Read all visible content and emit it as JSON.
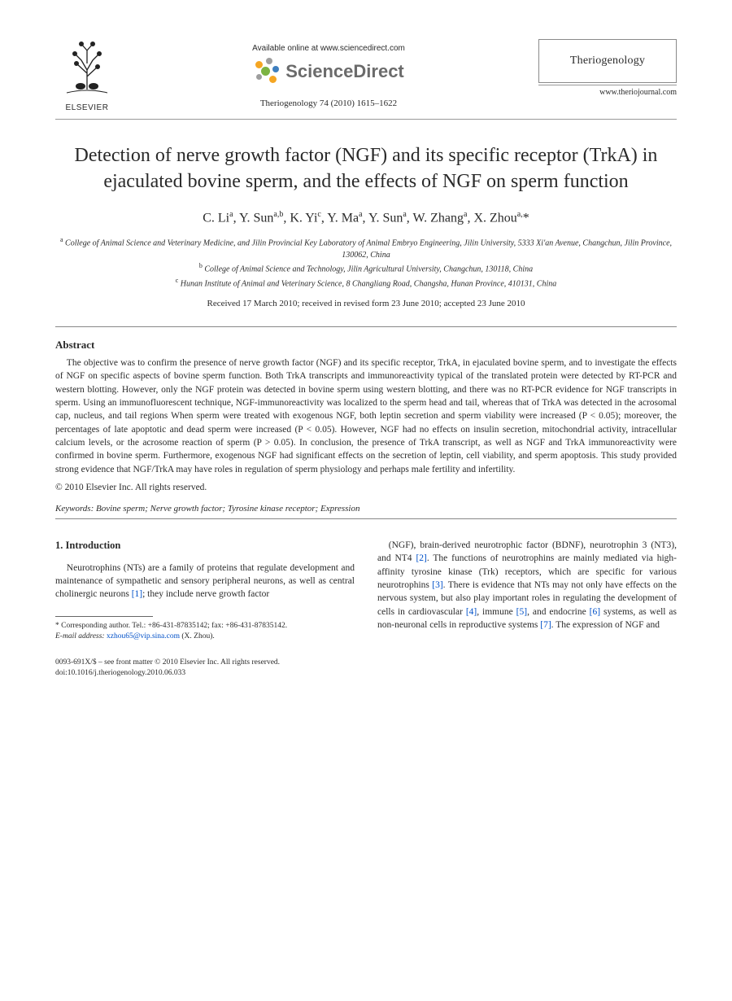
{
  "header": {
    "available_online": "Available online at www.sciencedirect.com",
    "sciencedirect_label": "ScienceDirect",
    "elsevier_label": "ELSEVIER",
    "citation": "Theriogenology 74 (2010) 1615–1622",
    "journal_name": "Theriogenology",
    "journal_url": "www.theriojournal.com"
  },
  "title": "Detection of nerve growth factor (NGF) and its specific receptor (TrkA) in ejaculated bovine sperm, and the effects of NGF on sperm function",
  "authors_html": "C. Li<sup>a</sup>, Y. Sun<sup>a,b</sup>, K. Yi<sup>c</sup>, Y. Ma<sup>a</sup>, Y. Sun<sup>a</sup>, W. Zhang<sup>a</sup>, X. Zhou<sup>a,</sup>*",
  "affiliations": {
    "a": "College of Animal Science and Veterinary Medicine, and Jilin Provincial Key Laboratory of Animal Embryo Engineering, Jilin University, 5333 Xi'an Avenue, Changchun, Jilin Province, 130062, China",
    "b": "College of Animal Science and Technology, Jilin Agricultural University, Changchun, 130118, China",
    "c": "Hunan Institute of Animal and Veterinary Science, 8 Changliang Road, Changsha, Hunan Province, 410131, China"
  },
  "dates": "Received 17 March 2010; received in revised form 23 June 2010; accepted 23 June 2010",
  "abstract": {
    "heading": "Abstract",
    "body": "The objective was to confirm the presence of nerve growth factor (NGF) and its specific receptor, TrkA, in ejaculated bovine sperm, and to investigate the effects of NGF on specific aspects of bovine sperm function. Both TrkA transcripts and immunoreactivity typical of the translated protein were detected by RT-PCR and western blotting. However, only the NGF protein was detected in bovine sperm using western blotting, and there was no RT-PCR evidence for NGF transcripts in sperm. Using an immunofluorescent technique, NGF-immunoreactivity was localized to the sperm head and tail, whereas that of TrkA was detected in the acrosomal cap, nucleus, and tail regions When sperm were treated with exogenous NGF, both leptin secretion and sperm viability were increased (P < 0.05); moreover, the percentages of late apoptotic and dead sperm were increased (P < 0.05). However, NGF had no effects on insulin secretion, mitochondrial activity, intracellular calcium levels, or the acrosome reaction of sperm (P > 0.05). In conclusion, the presence of TrkA transcript, as well as NGF and TrkA immunoreactivity were confirmed in bovine sperm. Furthermore, exogenous NGF had significant effects on the secretion of leptin, cell viability, and sperm apoptosis. This study provided strong evidence that NGF/TrkA may have roles in regulation of sperm physiology and perhaps male fertility and infertility.",
    "copyright": "© 2010 Elsevier Inc. All rights reserved."
  },
  "keywords": {
    "label": "Keywords:",
    "text": "Bovine sperm; Nerve growth factor; Tyrosine kinase receptor; Expression"
  },
  "intro": {
    "heading": "1. Introduction",
    "col1": "Neurotrophins (NTs) are a family of proteins that regulate development and maintenance of sympathetic and sensory peripheral neurons, as well as central cholinergic neurons [1]; they include nerve growth factor",
    "col2": "(NGF), brain-derived neurotrophic factor (BDNF), neurotrophin 3 (NT3), and NT4 [2]. The functions of neurotrophins are mainly mediated via high-affinity tyrosine kinase (Trk) receptors, which are specific for various neurotrophins [3]. There is evidence that NTs may not only have effects on the nervous system, but also play important roles in regulating the development of cells in cardiovascular [4], immune [5], and endocrine [6] systems, as well as non-neuronal cells in reproductive systems [7]. The expression of NGF and"
  },
  "footnote": {
    "corr": "* Corresponding author. Tel.: +86-431-87835142; fax: +86-431-87835142.",
    "email_label": "E-mail address:",
    "email": "xzhou65@vip.sina.com",
    "email_person": "(X. Zhou)."
  },
  "footer": {
    "line1": "0093-691X/$ – see front matter © 2010 Elsevier Inc. All rights reserved.",
    "doi": "doi:10.1016/j.theriogenology.2010.06.033"
  },
  "refs": [
    "[1]",
    "[2]",
    "[3]",
    "[4]",
    "[5]",
    "[6]",
    "[7]"
  ],
  "colors": {
    "text": "#2a2a2a",
    "link": "#0050c8",
    "rule": "#888888",
    "sd_orange": "#f5a623",
    "sd_green": "#7cb342",
    "sd_blue": "#3f7fbf",
    "sd_grey": "#9e9e9e"
  }
}
